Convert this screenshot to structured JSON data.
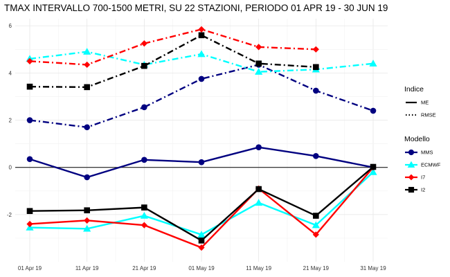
{
  "chart_data": {
    "type": "line",
    "title": "TMAX INTERVALLO 700-1500 METRI, SU 22 STAZIONI, PERIODO 01 APR 19  -  30 JUN 19",
    "xlabel": "",
    "ylabel": "",
    "x": [
      "01 Apr 19",
      "11 Apr 19",
      "21 Apr 19",
      "01 May 19",
      "11 May 19",
      "21 May 19",
      "31 May 19"
    ],
    "yticks": [
      -2,
      0,
      2,
      4,
      6
    ],
    "ylim": [
      -4.0,
      6.3
    ],
    "zero_line": true,
    "grid": true,
    "legend": {
      "position": "right",
      "groups": [
        {
          "title": "Indice",
          "items": [
            {
              "label": "ME",
              "linetype": "solid"
            },
            {
              "label": "RMSE",
              "linetype": "dotdash"
            }
          ]
        },
        {
          "title": "Modello",
          "items": [
            {
              "label": "MMS",
              "color": "#000080",
              "shape": "circle"
            },
            {
              "label": "ECMWF",
              "color": "#00ffff",
              "shape": "triangle"
            },
            {
              "label": "I7",
              "color": "#ff0000",
              "shape": "diamond"
            },
            {
              "label": "I2",
              "color": "#000000",
              "shape": "square"
            }
          ]
        }
      ]
    },
    "series": [
      {
        "model": "MMS",
        "index": "RMSE",
        "color": "#000080",
        "shape": "circle",
        "values": [
          2.0,
          1.7,
          2.55,
          3.75,
          4.35,
          3.25,
          2.4
        ]
      },
      {
        "model": "ECMWF",
        "index": "RMSE",
        "color": "#00ffff",
        "shape": "triangle",
        "values": [
          4.6,
          4.9,
          4.35,
          4.8,
          4.05,
          4.15,
          4.4
        ]
      },
      {
        "model": "I7",
        "index": "RMSE",
        "color": "#ff0000",
        "shape": "diamond",
        "values": [
          4.5,
          4.35,
          5.25,
          5.85,
          5.1,
          5.0,
          null
        ]
      },
      {
        "model": "I2",
        "index": "RMSE",
        "color": "#000000",
        "shape": "square",
        "values": [
          3.42,
          3.4,
          4.3,
          5.6,
          4.4,
          4.25,
          null
        ]
      },
      {
        "model": "MMS",
        "index": "ME",
        "color": "#000080",
        "shape": "circle",
        "values": [
          0.35,
          -0.42,
          0.32,
          0.22,
          0.85,
          0.48,
          0.0
        ]
      },
      {
        "model": "ECMWF",
        "index": "ME",
        "color": "#00ffff",
        "shape": "triangle",
        "values": [
          -2.55,
          -2.6,
          -2.05,
          -2.85,
          -1.5,
          -2.45,
          -0.2
        ]
      },
      {
        "model": "I7",
        "index": "ME",
        "color": "#ff0000",
        "shape": "diamond",
        "values": [
          -2.4,
          -2.25,
          -2.45,
          -3.4,
          -0.9,
          -2.85,
          0.0
        ]
      },
      {
        "model": "I2",
        "index": "ME",
        "color": "#000000",
        "shape": "square",
        "values": [
          -1.85,
          -1.82,
          -1.7,
          -3.1,
          -0.92,
          -2.05,
          0.02
        ]
      }
    ]
  }
}
